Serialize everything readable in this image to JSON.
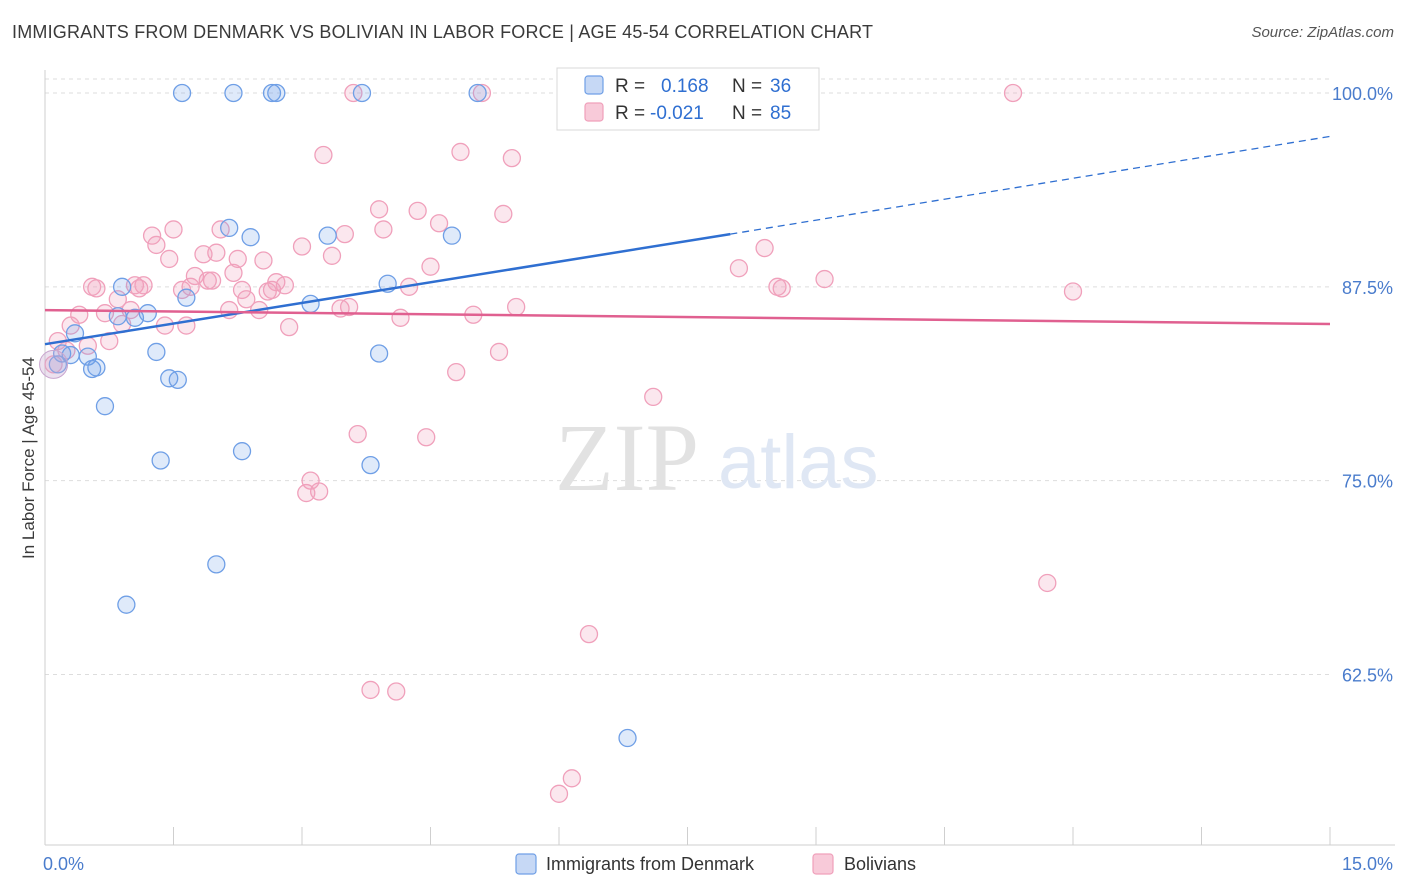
{
  "title": "IMMIGRANTS FROM DENMARK VS BOLIVIAN IN LABOR FORCE | AGE 45-54 CORRELATION CHART",
  "source": "Source: ZipAtlas.com",
  "colors": {
    "blue": "#6f9fe6",
    "blue_line": "#2f6fd1",
    "pink": "#f0a0bb",
    "pink_line": "#e06090",
    "tick": "#4a7ccc"
  },
  "legend": {
    "rows": [
      {
        "r_label": "R =",
        "r_value": "0.168",
        "n_label": "N =",
        "n_value": "36"
      },
      {
        "r_label": "R =",
        "r_value": "-0.021",
        "n_label": "N =",
        "n_value": "85"
      }
    ]
  },
  "watermark": {
    "zip": "ZIP",
    "atlas": "atlas"
  },
  "chart_data": {
    "type": "scatter",
    "ylabel": "In Labor Force | Age 45-54",
    "xlim": [
      0,
      15
    ],
    "ylim": [
      51.5,
      102
    ],
    "x_tick_labels": [
      "0.0%",
      "15.0%"
    ],
    "y_ticks": [
      {
        "value": 62.5,
        "label": "62.5%"
      },
      {
        "value": 75.0,
        "label": "75.0%"
      },
      {
        "value": 87.5,
        "label": "87.5%"
      },
      {
        "value": 100.0,
        "label": "100.0%"
      }
    ],
    "series": [
      {
        "name": "Immigrants from Denmark",
        "color": "#6f9fe6",
        "points": [
          [
            0.2,
            83.2
          ],
          [
            0.3,
            83.1
          ],
          [
            0.35,
            84.5
          ],
          [
            0.5,
            83.0
          ],
          [
            0.55,
            82.2
          ],
          [
            0.6,
            82.3
          ],
          [
            0.7,
            79.8
          ],
          [
            0.85,
            85.6
          ],
          [
            0.9,
            87.5
          ],
          [
            0.95,
            67.0
          ],
          [
            1.05,
            85.5
          ],
          [
            1.2,
            85.8
          ],
          [
            1.3,
            83.3
          ],
          [
            1.35,
            76.3
          ],
          [
            1.45,
            81.6
          ],
          [
            1.55,
            81.5
          ],
          [
            1.6,
            100.0
          ],
          [
            1.65,
            86.8
          ],
          [
            2.0,
            69.6
          ],
          [
            2.15,
            91.3
          ],
          [
            2.2,
            100.0
          ],
          [
            2.3,
            76.9
          ],
          [
            2.4,
            90.7
          ],
          [
            2.65,
            100.0
          ],
          [
            2.7,
            100.0
          ],
          [
            3.1,
            86.4
          ],
          [
            3.3,
            90.8
          ],
          [
            3.7,
            100.0
          ],
          [
            3.8,
            76.0
          ],
          [
            3.9,
            83.2
          ],
          [
            4.0,
            87.7
          ],
          [
            4.75,
            90.8
          ],
          [
            5.05,
            100.0
          ],
          [
            7.0,
            100.0
          ],
          [
            6.8,
            58.4
          ],
          [
            0.15,
            82.5
          ]
        ],
        "trend": {
          "x0": 0.0,
          "y0": 83.8,
          "x1": 8.0,
          "y1": 90.9,
          "dash_x1": 15.0,
          "dash_y1": 97.2
        }
      },
      {
        "name": "Bolivians",
        "color": "#f0a0bb",
        "points": [
          [
            0.1,
            82.5
          ],
          [
            0.15,
            84.0
          ],
          [
            0.25,
            83.4
          ],
          [
            0.3,
            85.0
          ],
          [
            0.4,
            85.7
          ],
          [
            0.5,
            83.7
          ],
          [
            0.55,
            87.5
          ],
          [
            0.6,
            87.4
          ],
          [
            0.7,
            85.8
          ],
          [
            0.75,
            84.0
          ],
          [
            0.85,
            86.7
          ],
          [
            0.9,
            85.1
          ],
          [
            1.0,
            86.0
          ],
          [
            1.05,
            87.6
          ],
          [
            1.1,
            87.4
          ],
          [
            1.15,
            87.6
          ],
          [
            1.25,
            90.8
          ],
          [
            1.3,
            90.2
          ],
          [
            1.4,
            85.0
          ],
          [
            1.45,
            89.3
          ],
          [
            1.5,
            91.2
          ],
          [
            1.6,
            87.3
          ],
          [
            1.65,
            85.0
          ],
          [
            1.7,
            87.5
          ],
          [
            1.75,
            88.2
          ],
          [
            1.85,
            89.6
          ],
          [
            1.9,
            87.9
          ],
          [
            1.95,
            87.9
          ],
          [
            2.0,
            89.7
          ],
          [
            2.05,
            91.2
          ],
          [
            2.15,
            86.0
          ],
          [
            2.2,
            88.4
          ],
          [
            2.25,
            89.3
          ],
          [
            2.3,
            87.3
          ],
          [
            2.35,
            86.7
          ],
          [
            2.5,
            86.0
          ],
          [
            2.55,
            89.2
          ],
          [
            2.6,
            87.2
          ],
          [
            2.65,
            87.3
          ],
          [
            2.7,
            87.8
          ],
          [
            2.8,
            87.6
          ],
          [
            2.85,
            84.9
          ],
          [
            3.0,
            90.1
          ],
          [
            3.05,
            74.2
          ],
          [
            3.1,
            75.0
          ],
          [
            3.2,
            74.3
          ],
          [
            3.25,
            96.0
          ],
          [
            3.35,
            89.5
          ],
          [
            3.45,
            86.1
          ],
          [
            3.5,
            90.9
          ],
          [
            3.55,
            86.2
          ],
          [
            3.6,
            100.0
          ],
          [
            3.65,
            78.0
          ],
          [
            3.8,
            61.5
          ],
          [
            3.9,
            92.5
          ],
          [
            3.95,
            91.2
          ],
          [
            4.1,
            61.4
          ],
          [
            4.15,
            85.5
          ],
          [
            4.25,
            87.5
          ],
          [
            4.35,
            92.4
          ],
          [
            4.45,
            77.8
          ],
          [
            4.5,
            88.8
          ],
          [
            4.6,
            91.6
          ],
          [
            4.8,
            82.0
          ],
          [
            4.85,
            96.2
          ],
          [
            5.0,
            85.7
          ],
          [
            5.1,
            100.0
          ],
          [
            5.3,
            83.3
          ],
          [
            5.35,
            92.2
          ],
          [
            5.45,
            95.8
          ],
          [
            5.5,
            86.2
          ],
          [
            6.0,
            54.8
          ],
          [
            6.15,
            55.8
          ],
          [
            6.35,
            65.1
          ],
          [
            6.8,
            100.0
          ],
          [
            7.1,
            80.4
          ],
          [
            8.05,
            100.0
          ],
          [
            8.1,
            88.7
          ],
          [
            8.4,
            90.0
          ],
          [
            8.55,
            87.5
          ],
          [
            8.6,
            87.4
          ],
          [
            9.1,
            88.0
          ],
          [
            11.3,
            100.0
          ],
          [
            11.7,
            68.4
          ],
          [
            12.0,
            87.2
          ]
        ],
        "trend": {
          "x0": 0.0,
          "y0": 86.0,
          "x1": 15.0,
          "y1": 85.1
        }
      }
    ]
  }
}
